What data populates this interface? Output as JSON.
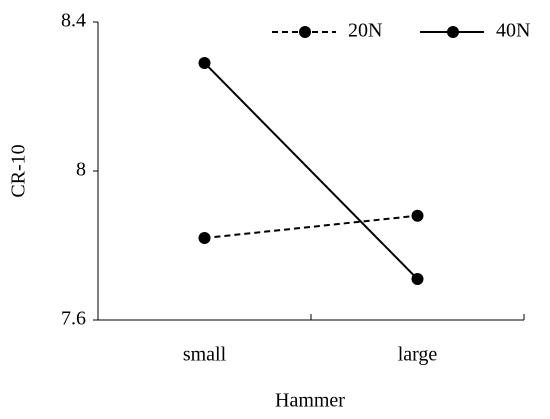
{
  "chart_data": {
    "type": "line",
    "x_label": "Hammer",
    "y_label": "CR-10",
    "categories": [
      "small",
      "large"
    ],
    "series": [
      {
        "name": "20N",
        "color": "#000000",
        "line_style": "dashed",
        "values": [
          7.82,
          7.88
        ]
      },
      {
        "name": "40N",
        "color": "#000000",
        "line_style": "solid",
        "values": [
          8.29,
          7.71
        ]
      }
    ],
    "ylim": [
      7.6,
      8.4
    ],
    "yticks": [
      7.6,
      8,
      8.4
    ],
    "grid": false,
    "legend": "top-right"
  }
}
